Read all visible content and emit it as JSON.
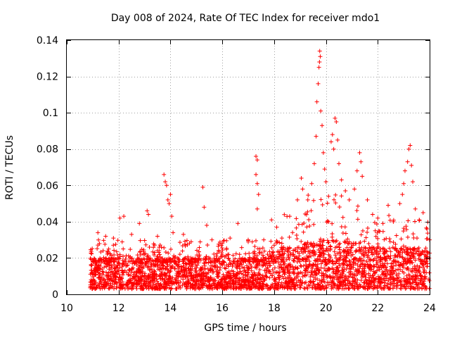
{
  "chart_data": {
    "type": "scatter",
    "title": "Day 008 of 2024, Rate Of TEC Index for receiver mdo1",
    "xlabel": "GPS time / hours",
    "ylabel": "ROTI / TECUs",
    "xlim": [
      10,
      24
    ],
    "ylim": [
      0,
      0.14
    ],
    "xticks": [
      10,
      12,
      14,
      16,
      18,
      20,
      22,
      24
    ],
    "yticks": [
      0,
      0.02,
      0.04,
      0.06,
      0.08,
      0.1,
      0.12,
      0.14
    ],
    "xtick_labels": [
      "10",
      "12",
      "14",
      "16",
      "18",
      "20",
      "22",
      "24"
    ],
    "ytick_labels": [
      "0",
      "0.02",
      "0.04",
      "0.06",
      "0.08",
      "0.1",
      "0.12",
      "0.14"
    ],
    "grid": true,
    "marker": "+",
    "color": "#ff0000",
    "series": [
      {
        "name": "ROTI",
        "x_start": 10.9,
        "x_end": 24.0,
        "baseline_band": [
          0.003,
          0.02
        ],
        "points": [
          [
            11.2,
            0.034
          ],
          [
            11.5,
            0.032
          ],
          [
            11.8,
            0.031
          ],
          [
            12.05,
            0.042
          ],
          [
            12.2,
            0.043
          ],
          [
            12.5,
            0.033
          ],
          [
            12.8,
            0.039
          ],
          [
            13.1,
            0.046
          ],
          [
            13.15,
            0.044
          ],
          [
            13.5,
            0.032
          ],
          [
            13.75,
            0.066
          ],
          [
            13.8,
            0.062
          ],
          [
            13.85,
            0.06
          ],
          [
            13.9,
            0.052
          ],
          [
            13.95,
            0.05
          ],
          [
            14.0,
            0.055
          ],
          [
            14.05,
            0.043
          ],
          [
            14.1,
            0.034
          ],
          [
            14.5,
            0.033
          ],
          [
            14.8,
            0.029
          ],
          [
            15.25,
            0.059
          ],
          [
            15.3,
            0.048
          ],
          [
            15.4,
            0.038
          ],
          [
            15.6,
            0.03
          ],
          [
            16.0,
            0.028
          ],
          [
            16.3,
            0.031
          ],
          [
            16.6,
            0.039
          ],
          [
            17.0,
            0.03
          ],
          [
            17.3,
            0.076
          ],
          [
            17.35,
            0.074
          ],
          [
            17.3,
            0.066
          ],
          [
            17.35,
            0.061
          ],
          [
            17.4,
            0.055
          ],
          [
            17.35,
            0.047
          ],
          [
            17.6,
            0.03
          ],
          [
            17.9,
            0.041
          ],
          [
            18.1,
            0.037
          ],
          [
            18.3,
            0.031
          ],
          [
            18.6,
            0.043
          ],
          [
            18.9,
            0.052
          ],
          [
            19.05,
            0.064
          ],
          [
            19.1,
            0.058
          ],
          [
            19.3,
            0.052
          ],
          [
            19.45,
            0.061
          ],
          [
            19.55,
            0.072
          ],
          [
            19.62,
            0.087
          ],
          [
            19.65,
            0.106
          ],
          [
            19.7,
            0.116
          ],
          [
            19.73,
            0.125
          ],
          [
            19.76,
            0.134
          ],
          [
            19.78,
            0.131
          ],
          [
            19.75,
            0.128
          ],
          [
            19.8,
            0.101
          ],
          [
            19.85,
            0.093
          ],
          [
            19.9,
            0.078
          ],
          [
            19.95,
            0.069
          ],
          [
            20.0,
            0.062
          ],
          [
            20.1,
            0.054
          ],
          [
            20.2,
            0.084
          ],
          [
            20.25,
            0.088
          ],
          [
            20.3,
            0.08
          ],
          [
            20.35,
            0.097
          ],
          [
            20.4,
            0.095
          ],
          [
            20.45,
            0.085
          ],
          [
            20.5,
            0.072
          ],
          [
            20.6,
            0.063
          ],
          [
            20.75,
            0.057
          ],
          [
            20.9,
            0.052
          ],
          [
            21.1,
            0.058
          ],
          [
            21.2,
            0.068
          ],
          [
            21.3,
            0.078
          ],
          [
            21.35,
            0.073
          ],
          [
            21.4,
            0.065
          ],
          [
            21.6,
            0.052
          ],
          [
            21.8,
            0.044
          ],
          [
            22.0,
            0.042
          ],
          [
            22.2,
            0.039
          ],
          [
            22.4,
            0.049
          ],
          [
            22.6,
            0.04
          ],
          [
            22.85,
            0.05
          ],
          [
            22.95,
            0.055
          ],
          [
            23.0,
            0.061
          ],
          [
            23.05,
            0.068
          ],
          [
            23.15,
            0.073
          ],
          [
            23.2,
            0.08
          ],
          [
            23.25,
            0.082
          ],
          [
            23.3,
            0.071
          ],
          [
            23.35,
            0.062
          ],
          [
            23.45,
            0.047
          ],
          [
            23.6,
            0.041
          ],
          [
            23.75,
            0.045
          ],
          [
            23.9,
            0.036
          ],
          [
            24.0,
            0.03
          ]
        ]
      }
    ]
  }
}
